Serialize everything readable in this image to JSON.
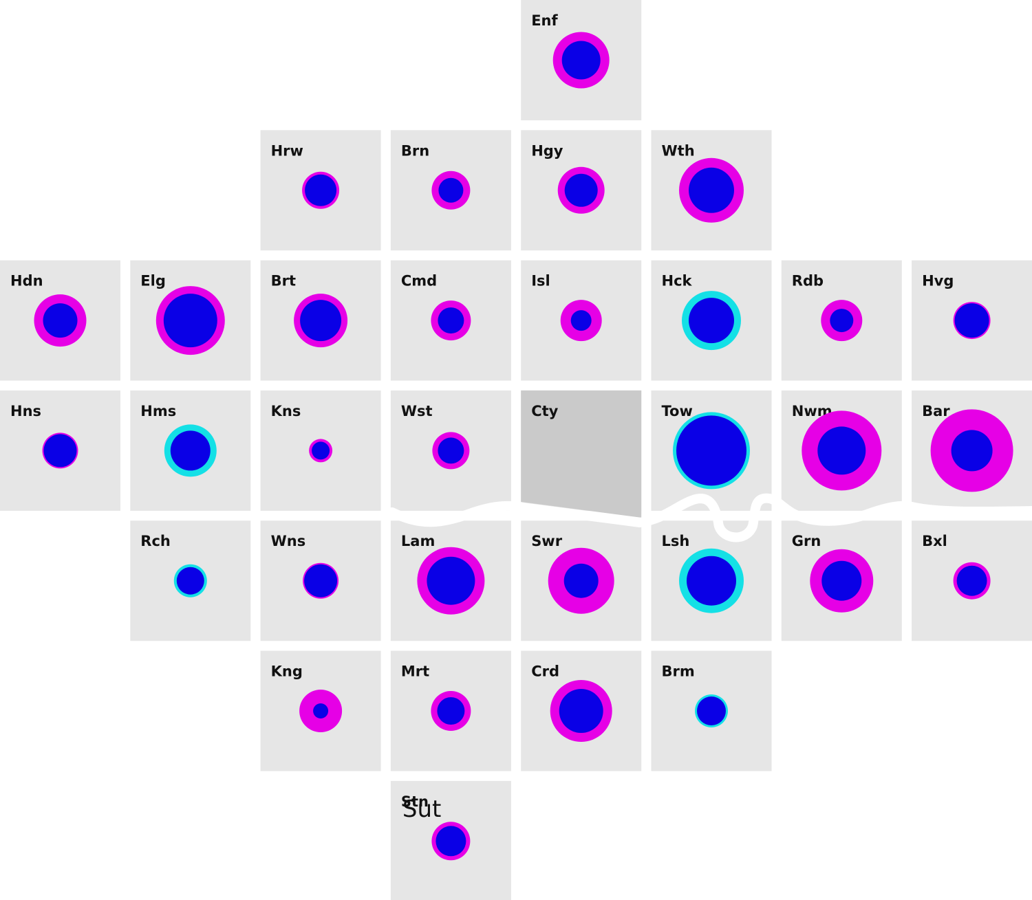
{
  "colors": {
    "background": "#ffffff",
    "tile": "#e6e6e6",
    "tile_empty": "#cacaca",
    "river": "#ffffff",
    "outer_increase": "#e600e6",
    "outer_decrease": "#14e0e6",
    "inner": "#0a00e6",
    "text": "#111111"
  },
  "boroughs": [
    {
      "code": "Enf",
      "row": 0,
      "col": 4,
      "outer_r": 41,
      "inner_r": 28,
      "outer": "increase"
    },
    {
      "code": "Hrw",
      "row": 1,
      "col": 2,
      "outer_r": 27,
      "inner_r": 23,
      "outer": "increase"
    },
    {
      "code": "Brn",
      "row": 1,
      "col": 3,
      "outer_r": 28,
      "inner_r": 18,
      "outer": "increase"
    },
    {
      "code": "Hgy",
      "row": 1,
      "col": 4,
      "outer_r": 34,
      "inner_r": 24,
      "outer": "increase"
    },
    {
      "code": "Wth",
      "row": 1,
      "col": 5,
      "outer_r": 47,
      "inner_r": 33,
      "outer": "increase"
    },
    {
      "code": "Hdn",
      "row": 2,
      "col": 0,
      "outer_r": 38,
      "inner_r": 25,
      "outer": "increase"
    },
    {
      "code": "Elg",
      "row": 2,
      "col": 1,
      "outer_r": 50,
      "inner_r": 39,
      "outer": "increase"
    },
    {
      "code": "Brt",
      "row": 2,
      "col": 2,
      "outer_r": 39,
      "inner_r": 30,
      "outer": "increase"
    },
    {
      "code": "Cmd",
      "row": 2,
      "col": 3,
      "outer_r": 29,
      "inner_r": 19,
      "outer": "increase"
    },
    {
      "code": "Isl",
      "row": 2,
      "col": 4,
      "outer_r": 30,
      "inner_r": 15,
      "outer": "increase"
    },
    {
      "code": "Hck",
      "row": 2,
      "col": 5,
      "outer_r": 43,
      "inner_r": 33,
      "outer": "decrease"
    },
    {
      "code": "Rdb",
      "row": 2,
      "col": 6,
      "outer_r": 30,
      "inner_r": 17,
      "outer": "increase"
    },
    {
      "code": "Hvg",
      "row": 2,
      "col": 7,
      "outer_r": 27,
      "inner_r": 25,
      "outer": "increase"
    },
    {
      "code": "Hns",
      "row": 3,
      "col": 0,
      "outer_r": 26,
      "inner_r": 24,
      "outer": "increase"
    },
    {
      "code": "Hms",
      "row": 3,
      "col": 1,
      "outer_r": 38,
      "inner_r": 29,
      "outer": "decrease"
    },
    {
      "code": "Kns",
      "row": 3,
      "col": 2,
      "outer_r": 17,
      "inner_r": 13,
      "outer": "increase"
    },
    {
      "code": "Wst",
      "row": 3,
      "col": 3,
      "outer_r": 27,
      "inner_r": 19,
      "outer": "increase"
    },
    {
      "code": "Cty",
      "row": 3,
      "col": 4,
      "empty": true
    },
    {
      "code": "Tow",
      "row": 3,
      "col": 5,
      "outer_r": 56,
      "inner_r": 51,
      "outer": "decrease"
    },
    {
      "code": "Nwm",
      "row": 3,
      "col": 6,
      "outer_r": 58,
      "inner_r": 35,
      "outer": "increase"
    },
    {
      "code": "Bar",
      "row": 3,
      "col": 7,
      "outer_r": 60,
      "inner_r": 30,
      "outer": "increase"
    },
    {
      "code": "Rch",
      "row": 4,
      "col": 1,
      "outer_r": 24,
      "inner_r": 20,
      "outer": "decrease"
    },
    {
      "code": "Wns",
      "row": 4,
      "col": 2,
      "outer_r": 26,
      "inner_r": 24,
      "outer": "increase"
    },
    {
      "code": "Lam",
      "row": 4,
      "col": 3,
      "outer_r": 49,
      "inner_r": 35,
      "outer": "increase"
    },
    {
      "code": "Swr",
      "row": 4,
      "col": 4,
      "outer_r": 48,
      "inner_r": 25,
      "outer": "increase"
    },
    {
      "code": "Lsh",
      "row": 4,
      "col": 5,
      "outer_r": 47,
      "inner_r": 36,
      "outer": "decrease"
    },
    {
      "code": "Grn",
      "row": 4,
      "col": 6,
      "outer_r": 46,
      "inner_r": 29,
      "outer": "increase"
    },
    {
      "code": "Bxl",
      "row": 4,
      "col": 7,
      "outer_r": 27,
      "inner_r": 22,
      "outer": "increase"
    },
    {
      "code": "Kng",
      "row": 5,
      "col": 2,
      "outer_r": 31,
      "inner_r": 11,
      "outer": "increase"
    },
    {
      "code": "Mrt",
      "row": 5,
      "col": 3,
      "outer_r": 29,
      "inner_r": 20,
      "outer": "increase"
    },
    {
      "code": "Crd",
      "row": 5,
      "col": 4,
      "outer_r": 45,
      "inner_r": 32,
      "outer": "increase"
    },
    {
      "code": "Brm",
      "row": 5,
      "col": 5,
      "outer_r": 24,
      "inner_r": 21,
      "outer": "decrease"
    },
    {
      "code": "Stn",
      "row": 6,
      "col": 3,
      "outer_r": 28,
      "inner_r": 22,
      "outer": "increase",
      "overlay": "Sut"
    }
  ]
}
